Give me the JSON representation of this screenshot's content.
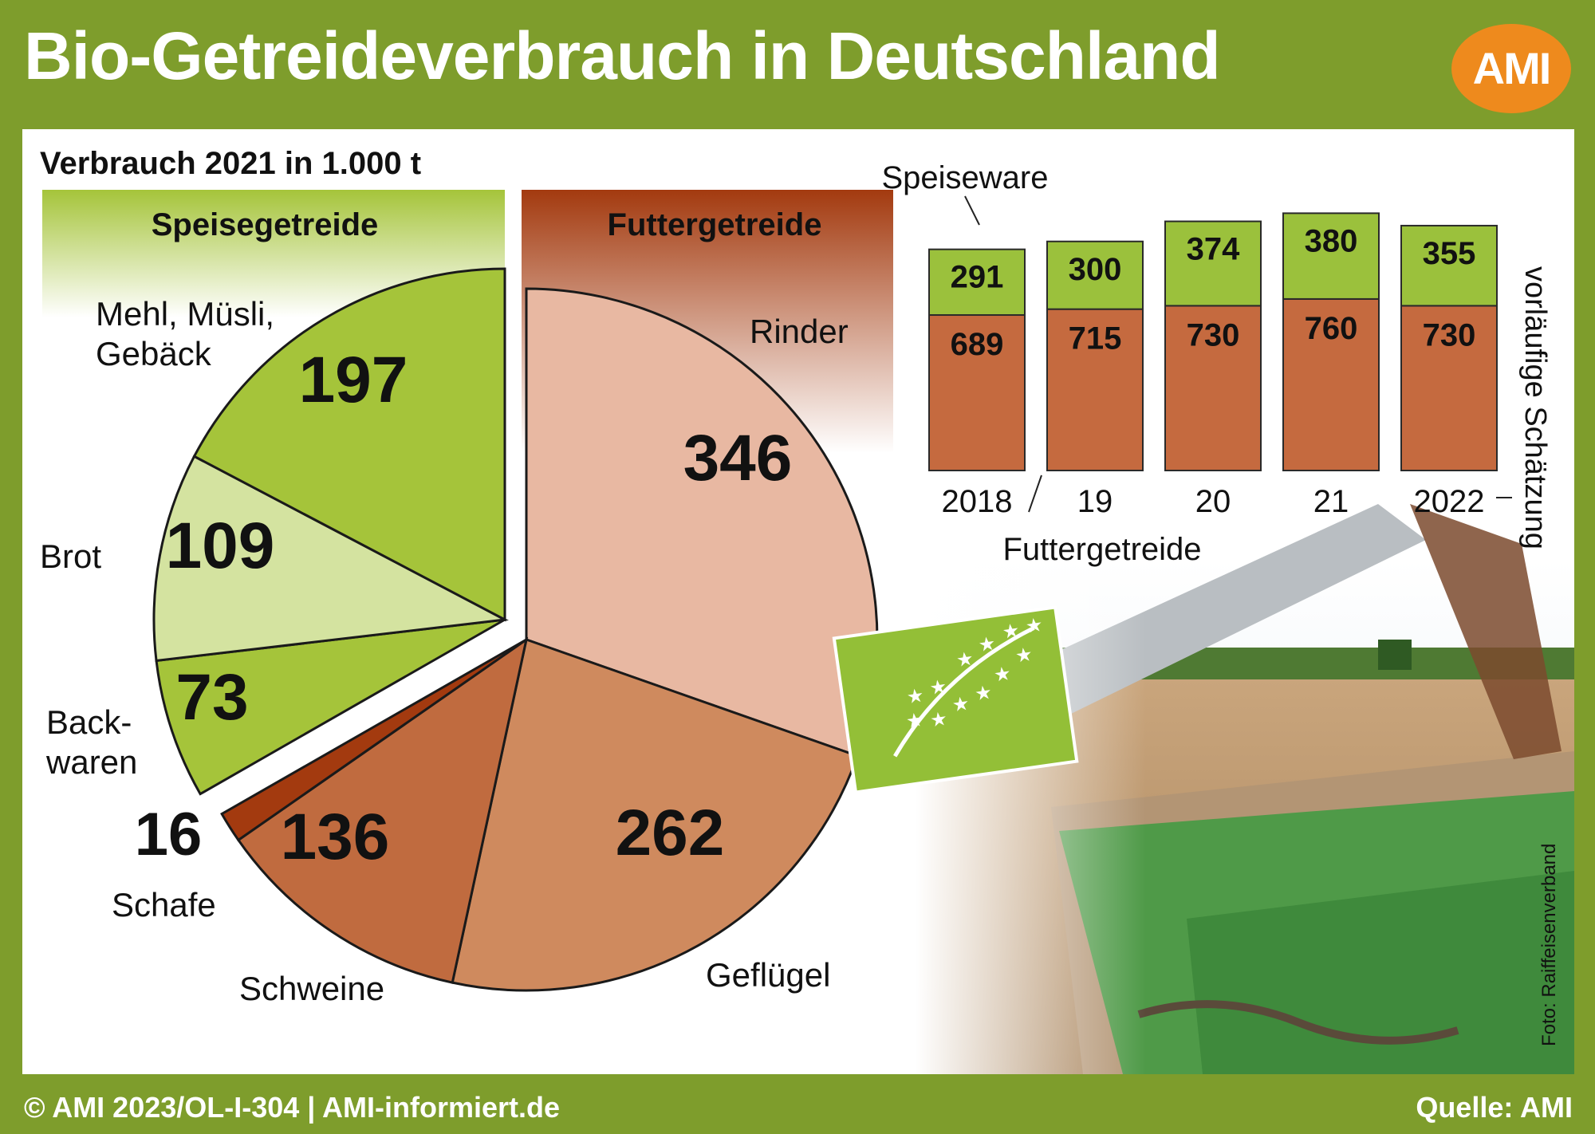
{
  "header": {
    "title": "Bio-Getreideverbrauch in Deutschland",
    "logo_text": "AMI"
  },
  "footer": {
    "left": "© AMI 2023/OL-I-304 | AMI-informiert.de",
    "source": "Quelle: AMI"
  },
  "photo_credit": "Foto: Raiffeisenverband",
  "colors": {
    "frame": "#7e9d2c",
    "speise_green": "#a5c43a",
    "brot_light": "#d4e3a0",
    "futter_dark": "#a33a0f",
    "rinder_pink": "#e8b8a2",
    "gefluegel": "#cf8a5e",
    "schweine": "#c06b3f",
    "logo_orange": "#ee8a1d",
    "bar_green": "#9bc13c",
    "bar_brown": "#c56a3f"
  },
  "chart_data": [
    {
      "type": "pie",
      "title": "Verbrauch 2021 in 1.000 t",
      "groups": [
        {
          "name": "Speisegetreide",
          "slices": [
            {
              "label": "Mehl, Müsli, Gebäck",
              "value": 197,
              "value_text": "197"
            },
            {
              "label": "Brot",
              "value": 109,
              "value_text": "109"
            },
            {
              "label": "Back-waren",
              "label_lines": [
                "Back-",
                "waren"
              ],
              "value": 73,
              "value_text": "73"
            }
          ]
        },
        {
          "name": "Futtergetreide",
          "slices": [
            {
              "label": "Rinder",
              "value": 346,
              "value_text": "346"
            },
            {
              "label": "Geflügel",
              "value": 262,
              "value_text": "262"
            },
            {
              "label": "Schweine",
              "value": 136,
              "value_text": "136"
            },
            {
              "label": "Schafe",
              "value": 16,
              "value_text": "16"
            }
          ]
        }
      ]
    },
    {
      "type": "bar",
      "stacked": true,
      "categories": [
        "2018",
        "19",
        "20",
        "21",
        "2022"
      ],
      "series": [
        {
          "name": "Futtergetreide",
          "values": [
            689,
            715,
            730,
            760,
            730
          ]
        },
        {
          "name": "Speiseware",
          "values": [
            291,
            300,
            374,
            380,
            355
          ]
        }
      ],
      "annotation": "vorläufige Schätzung"
    }
  ]
}
